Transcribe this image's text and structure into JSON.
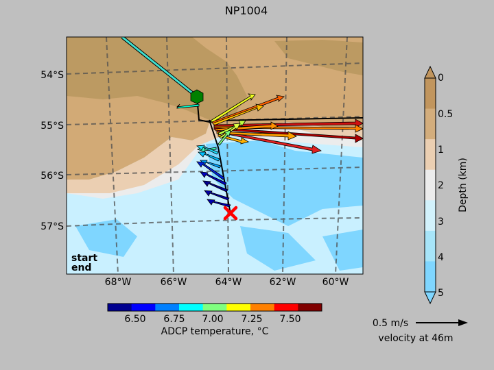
{
  "title": "NP1004",
  "map": {
    "lat_ticks": [
      {
        "label": "54°S",
        "value": -54
      },
      {
        "label": "55°S",
        "value": -55
      },
      {
        "label": "56°S",
        "value": -56
      },
      {
        "label": "57°S",
        "value": -57
      }
    ],
    "lon_ticks": [
      {
        "label": "68°W",
        "value": -68
      },
      {
        "label": "66°W",
        "value": -66
      },
      {
        "label": "64°W",
        "value": -64
      },
      {
        "label": "62°W",
        "value": -62
      },
      {
        "label": "60°W",
        "value": -60
      }
    ],
    "legend": {
      "start_label": "start",
      "start_color": "#008000",
      "end_label": "end",
      "end_color": "#ff0000"
    },
    "land_color": "#bc9a62",
    "shelf_color": "#d2aa76",
    "deep_color": "#c9f0ff",
    "deepest_color": "#7fd6ff"
  },
  "depth_bar": {
    "label": "Depth (km)",
    "ticks": [
      "0",
      "0.5",
      "1",
      "2",
      "3",
      "4",
      "5"
    ],
    "colors": [
      "#c1955d",
      "#d3ad7c",
      "#ebcfb2",
      "#ececec",
      "#d2f2fc",
      "#a7e5f9",
      "#7fd6ff"
    ]
  },
  "temp_bar": {
    "label": "ADCP temperature, °C",
    "ticks": [
      "6.50",
      "6.75",
      "7.00",
      "7.25",
      "7.50"
    ],
    "colors": [
      "#00008f",
      "#0000ff",
      "#0080ff",
      "#00ffff",
      "#80ff80",
      "#ffff00",
      "#ff8000",
      "#ff0000",
      "#800000"
    ]
  },
  "scale_arrow": {
    "speed_label": "0.5 m/s",
    "caption": "velocity at 46m"
  },
  "track": {
    "start": {
      "lon": -64.8,
      "lat": -54.45
    },
    "end": {
      "lon": -63.9,
      "lat": -56.75
    }
  }
}
